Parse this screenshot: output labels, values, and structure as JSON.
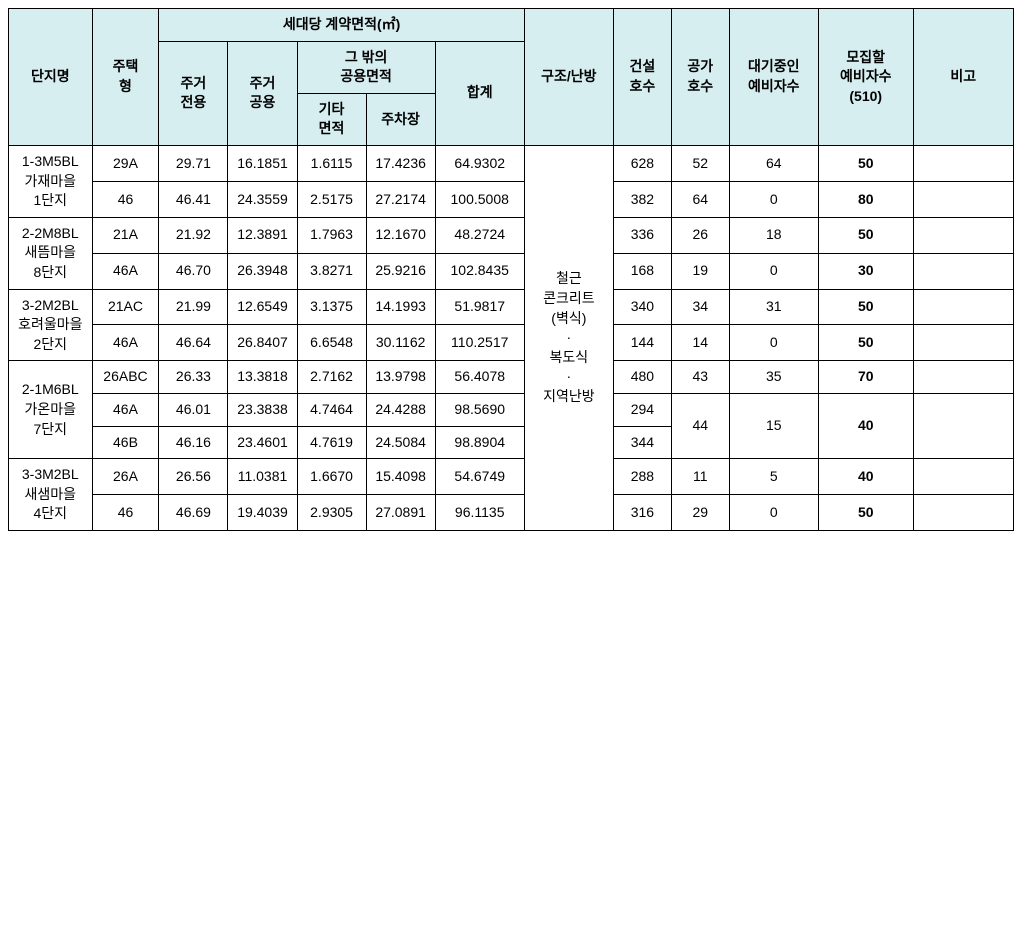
{
  "header": {
    "danji": "단지명",
    "house_type": "주택\n형",
    "contract_area": "세대당 계약면적(㎡)",
    "residence_exclusive": "주거\n전용",
    "residence_common": "주거\n공용",
    "other_common_area": "그 밖의\n공용면적",
    "other_area": "기타\n면적",
    "parking": "주차장",
    "total": "합계",
    "structure_heating": "구조/난방",
    "construction_count": "건설\n호수",
    "supply_count": "공가\n호수",
    "waiting_count": "대기중인\n예비자수",
    "recruit_count": "모집할\n예비자수\n(510)",
    "remark": "비고"
  },
  "structure_heating_value": "철근\n콘크리트\n(벽식)\n·\n복도식\n·\n지역난방",
  "rows": [
    {
      "danji": "1-3M5BL\n가재마을\n1단지",
      "type": "29A",
      "excl": "29.71",
      "comm": "16.1851",
      "etc": "1.6115",
      "park": "17.4236",
      "sum": "64.9302",
      "build": "628",
      "supply": "52",
      "wait": "64",
      "recruit": "50",
      "remark": ""
    },
    {
      "danji": "",
      "type": "46",
      "excl": "46.41",
      "comm": "24.3559",
      "etc": "2.5175",
      "park": "27.2174",
      "sum": "100.5008",
      "build": "382",
      "supply": "64",
      "wait": "0",
      "recruit": "80",
      "remark": ""
    },
    {
      "danji": "2-2M8BL\n새뜸마을\n8단지",
      "type": "21A",
      "excl": "21.92",
      "comm": "12.3891",
      "etc": "1.7963",
      "park": "12.1670",
      "sum": "48.2724",
      "build": "336",
      "supply": "26",
      "wait": "18",
      "recruit": "50",
      "remark": ""
    },
    {
      "danji": "",
      "type": "46A",
      "excl": "46.70",
      "comm": "26.3948",
      "etc": "3.8271",
      "park": "25.9216",
      "sum": "102.8435",
      "build": "168",
      "supply": "19",
      "wait": "0",
      "recruit": "30",
      "remark": ""
    },
    {
      "danji": "3-2M2BL\n호려울마을\n2단지",
      "type": "21AC",
      "excl": "21.99",
      "comm": "12.6549",
      "etc": "3.1375",
      "park": "14.1993",
      "sum": "51.9817",
      "build": "340",
      "supply": "34",
      "wait": "31",
      "recruit": "50",
      "remark": ""
    },
    {
      "danji": "",
      "type": "46A",
      "excl": "46.64",
      "comm": "26.8407",
      "etc": "6.6548",
      "park": "30.1162",
      "sum": "110.2517",
      "build": "144",
      "supply": "14",
      "wait": "0",
      "recruit": "50",
      "remark": ""
    },
    {
      "danji": "2-1M6BL\n가온마을\n7단지",
      "type": "26ABC",
      "excl": "26.33",
      "comm": "13.3818",
      "etc": "2.7162",
      "park": "13.9798",
      "sum": "56.4078",
      "build": "480",
      "supply": "43",
      "wait": "35",
      "recruit": "70",
      "remark": ""
    },
    {
      "danji": "",
      "type": "46A",
      "excl": "46.01",
      "comm": "23.3838",
      "etc": "4.7464",
      "park": "24.4288",
      "sum": "98.5690",
      "build": "294",
      "supply": "44",
      "wait": "15",
      "recruit": "40",
      "remark": ""
    },
    {
      "danji": "",
      "type": "46B",
      "excl": "46.16",
      "comm": "23.4601",
      "etc": "4.7619",
      "park": "24.5084",
      "sum": "98.8904",
      "build": "344",
      "supply": "",
      "wait": "",
      "recruit": "",
      "remark": ""
    },
    {
      "danji": "3-3M2BL\n새샘마을\n4단지",
      "type": "26A",
      "excl": "26.56",
      "comm": "11.0381",
      "etc": "1.6670",
      "park": "15.4098",
      "sum": "54.6749",
      "build": "288",
      "supply": "11",
      "wait": "5",
      "recruit": "40",
      "remark": ""
    },
    {
      "danji": "",
      "type": "46",
      "excl": "46.69",
      "comm": "19.4039",
      "etc": "2.9305",
      "park": "27.0891",
      "sum": "96.1135",
      "build": "316",
      "supply": "29",
      "wait": "0",
      "recruit": "50",
      "remark": ""
    }
  ],
  "style": {
    "header_bg": "#d6eef0",
    "border_color": "#000000",
    "base_font_size": 14
  }
}
